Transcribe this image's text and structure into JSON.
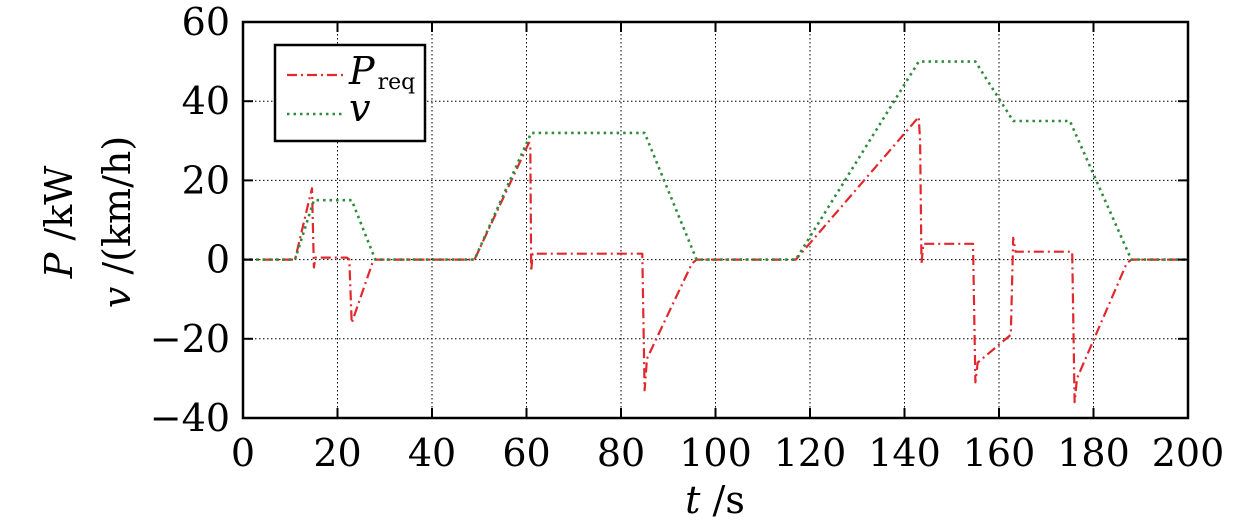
{
  "chart_data": {
    "type": "line",
    "xlabel": {
      "var": "t",
      "unit": " /s"
    },
    "ylabel": {
      "line1": {
        "var": "P",
        "unit": " /kW"
      },
      "line2": {
        "var": "v",
        "unit": " /(km/h)"
      }
    },
    "xlim": [
      0,
      200
    ],
    "ylim": [
      -40,
      60
    ],
    "xticks": [
      "0",
      "20",
      "40",
      "60",
      "80",
      "100",
      "120",
      "140",
      "160",
      "180",
      "200"
    ],
    "yticks": [
      "−40",
      "−20",
      "0",
      "20",
      "40",
      "60"
    ],
    "grid": true,
    "legend_position": "top-left",
    "series": [
      {
        "name": "P",
        "name_sub": "req",
        "color": "#e0282d",
        "style": "dash-dot",
        "points": [
          [
            0,
            0
          ],
          [
            11,
            0
          ],
          [
            14,
            15
          ],
          [
            14.6,
            18
          ],
          [
            15,
            -2
          ],
          [
            15.3,
            0.5
          ],
          [
            22,
            0.5
          ],
          [
            22.5,
            0
          ],
          [
            23,
            -16
          ],
          [
            27.5,
            -0.5
          ],
          [
            28,
            0
          ],
          [
            49,
            0
          ],
          [
            60.5,
            29.5
          ],
          [
            60.8,
            29
          ],
          [
            61,
            -3
          ],
          [
            61.3,
            1.5
          ],
          [
            84.5,
            1.5
          ],
          [
            85,
            -33
          ],
          [
            85.5,
            -25
          ],
          [
            95,
            -1
          ],
          [
            96,
            0
          ],
          [
            117,
            0
          ],
          [
            143,
            36
          ],
          [
            143.3,
            30
          ],
          [
            143.6,
            -1
          ],
          [
            144,
            4
          ],
          [
            154.5,
            4
          ],
          [
            155,
            -31
          ],
          [
            155.5,
            -26
          ],
          [
            162.5,
            -19
          ],
          [
            163,
            5.5
          ],
          [
            163.5,
            2
          ],
          [
            175.5,
            2
          ],
          [
            176,
            -36
          ],
          [
            176.5,
            -30
          ],
          [
            187,
            -1
          ],
          [
            188,
            0
          ],
          [
            200,
            0
          ]
        ]
      },
      {
        "name": "v",
        "color": "#2e8b3c",
        "style": "dotted",
        "points": [
          [
            0,
            0
          ],
          [
            11,
            0
          ],
          [
            15,
            15
          ],
          [
            23,
            15
          ],
          [
            28,
            0
          ],
          [
            49,
            0
          ],
          [
            61,
            32
          ],
          [
            85,
            32
          ],
          [
            96,
            0
          ],
          [
            117,
            0
          ],
          [
            143,
            50
          ],
          [
            155,
            50
          ],
          [
            163,
            35
          ],
          [
            175,
            35
          ],
          [
            188,
            0
          ],
          [
            200,
            0
          ]
        ]
      }
    ]
  }
}
